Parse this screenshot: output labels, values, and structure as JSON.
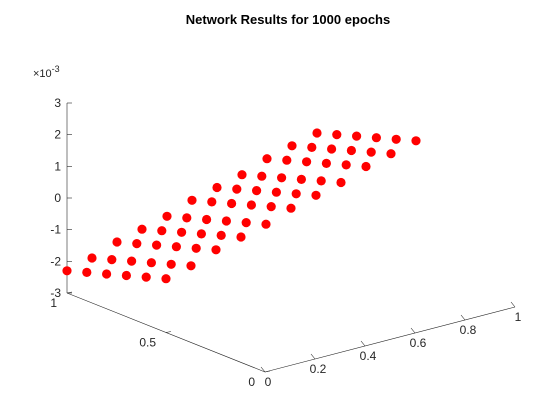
{
  "chart_data": {
    "type": "scatter",
    "title": "Network Results for 1000 epochs",
    "z_exponent_label": "×10",
    "z_exponent_power": "-3",
    "x_ticks": [
      {
        "value": 0,
        "label": "0"
      },
      {
        "value": 0.2,
        "label": "0.2"
      },
      {
        "value": 0.4,
        "label": "0.4"
      },
      {
        "value": 0.6,
        "label": "0.6"
      },
      {
        "value": 0.8,
        "label": "0.8"
      },
      {
        "value": 1,
        "label": "1"
      }
    ],
    "y_ticks": [
      {
        "value": 0,
        "label": "0"
      },
      {
        "value": 0.5,
        "label": "0.5"
      },
      {
        "value": 1,
        "label": "1"
      }
    ],
    "z_ticks": [
      {
        "value": -3,
        "label": "-3"
      },
      {
        "value": -2,
        "label": "-2"
      },
      {
        "value": -1,
        "label": "-1"
      },
      {
        "value": 0,
        "label": "0"
      },
      {
        "value": 1,
        "label": "1"
      },
      {
        "value": 2,
        "label": "2"
      },
      {
        "value": 3,
        "label": "3"
      }
    ],
    "xlim": [
      0,
      1
    ],
    "ylim": [
      0,
      1
    ],
    "zlim": [
      -3,
      3
    ],
    "grid": false,
    "marker_color": "#ff0000",
    "points": [
      {
        "x": 0.0,
        "y": 1.0,
        "z": -2.3
      },
      {
        "x": 0.1,
        "y": 1.0,
        "z": -2.1
      },
      {
        "x": 0.2,
        "y": 1.0,
        "z": -1.8
      },
      {
        "x": 0.3,
        "y": 1.0,
        "z": -1.6
      },
      {
        "x": 0.4,
        "y": 1.0,
        "z": -1.4
      },
      {
        "x": 0.5,
        "y": 1.0,
        "z": -1.1
      },
      {
        "x": 0.6,
        "y": 1.0,
        "z": -0.9
      },
      {
        "x": 0.7,
        "y": 1.0,
        "z": -0.7
      },
      {
        "x": 0.8,
        "y": 1.0,
        "z": -0.4
      },
      {
        "x": 0.9,
        "y": 1.0,
        "z": -0.2
      },
      {
        "x": 1.0,
        "y": 1.0,
        "z": 0.0
      },
      {
        "x": 0.0,
        "y": 0.9,
        "z": -2.1
      },
      {
        "x": 0.1,
        "y": 0.9,
        "z": -1.9
      },
      {
        "x": 0.2,
        "y": 0.9,
        "z": -1.6
      },
      {
        "x": 0.3,
        "y": 0.9,
        "z": -1.4
      },
      {
        "x": 0.4,
        "y": 0.9,
        "z": -1.2
      },
      {
        "x": 0.5,
        "y": 0.9,
        "z": -0.9
      },
      {
        "x": 0.6,
        "y": 0.9,
        "z": -0.7
      },
      {
        "x": 0.7,
        "y": 0.9,
        "z": -0.5
      },
      {
        "x": 0.8,
        "y": 0.9,
        "z": -0.2
      },
      {
        "x": 0.9,
        "y": 0.9,
        "z": 0.0
      },
      {
        "x": 1.0,
        "y": 0.9,
        "z": 0.2
      },
      {
        "x": 0.0,
        "y": 0.8,
        "z": -1.9
      },
      {
        "x": 0.1,
        "y": 0.8,
        "z": -1.7
      },
      {
        "x": 0.2,
        "y": 0.8,
        "z": -1.4
      },
      {
        "x": 0.3,
        "y": 0.8,
        "z": -1.2
      },
      {
        "x": 0.4,
        "y": 0.8,
        "z": -1.0
      },
      {
        "x": 0.5,
        "y": 0.8,
        "z": -0.7
      },
      {
        "x": 0.6,
        "y": 0.8,
        "z": -0.5
      },
      {
        "x": 0.7,
        "y": 0.8,
        "z": -0.3
      },
      {
        "x": 0.8,
        "y": 0.8,
        "z": 0.0
      },
      {
        "x": 0.9,
        "y": 0.8,
        "z": 0.2
      },
      {
        "x": 1.0,
        "y": 0.8,
        "z": 0.4
      },
      {
        "x": 0.0,
        "y": 0.7,
        "z": -1.7
      },
      {
        "x": 0.1,
        "y": 0.7,
        "z": -1.5
      },
      {
        "x": 0.2,
        "y": 0.7,
        "z": -1.2
      },
      {
        "x": 0.3,
        "y": 0.7,
        "z": -1.0
      },
      {
        "x": 0.4,
        "y": 0.7,
        "z": -0.8
      },
      {
        "x": 0.5,
        "y": 0.7,
        "z": -0.5
      },
      {
        "x": 0.6,
        "y": 0.7,
        "z": -0.3
      },
      {
        "x": 0.7,
        "y": 0.7,
        "z": -0.1
      },
      {
        "x": 0.8,
        "y": 0.7,
        "z": 0.2
      },
      {
        "x": 0.9,
        "y": 0.7,
        "z": 0.4
      },
      {
        "x": 1.0,
        "y": 0.7,
        "z": 0.6
      },
      {
        "x": 0.0,
        "y": 0.6,
        "z": -1.5
      },
      {
        "x": 0.1,
        "y": 0.6,
        "z": -1.3
      },
      {
        "x": 0.2,
        "y": 0.6,
        "z": -1.0
      },
      {
        "x": 0.3,
        "y": 0.6,
        "z": -0.8
      },
      {
        "x": 0.4,
        "y": 0.6,
        "z": -0.6
      },
      {
        "x": 0.5,
        "y": 0.6,
        "z": -0.3
      },
      {
        "x": 0.6,
        "y": 0.6,
        "z": -0.1
      },
      {
        "x": 0.7,
        "y": 0.6,
        "z": 0.1
      },
      {
        "x": 0.8,
        "y": 0.6,
        "z": 0.4
      },
      {
        "x": 0.9,
        "y": 0.6,
        "z": 0.6
      },
      {
        "x": 1.0,
        "y": 0.6,
        "z": 0.8
      },
      {
        "x": 0.0,
        "y": 0.5,
        "z": -1.3
      },
      {
        "x": 0.1,
        "y": 0.5,
        "z": -1.1
      },
      {
        "x": 0.2,
        "y": 0.5,
        "z": -0.8
      },
      {
        "x": 0.3,
        "y": 0.5,
        "z": -0.6
      },
      {
        "x": 0.4,
        "y": 0.5,
        "z": -0.4
      },
      {
        "x": 0.5,
        "y": 0.5,
        "z": -0.1
      },
      {
        "x": 0.6,
        "y": 0.5,
        "z": 0.1
      },
      {
        "x": 0.7,
        "y": 0.5,
        "z": 0.3
      },
      {
        "x": 0.8,
        "y": 0.5,
        "z": 0.6
      },
      {
        "x": 0.9,
        "y": 0.5,
        "z": 0.8
      },
      {
        "x": 1.0,
        "y": 0.5,
        "z": 1.0
      }
    ]
  }
}
